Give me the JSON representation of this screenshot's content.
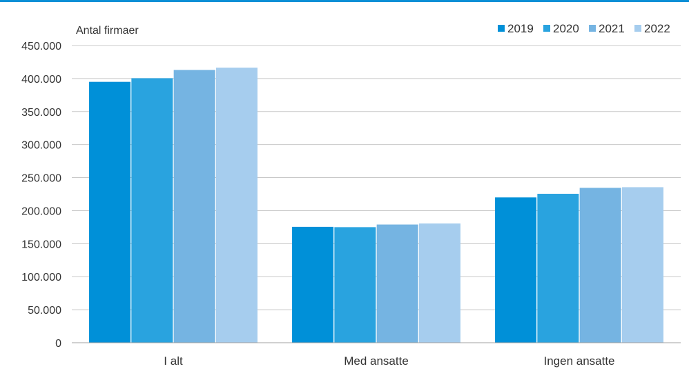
{
  "chart_data": {
    "type": "bar",
    "unit_label": "Antal firmaer",
    "categories": [
      "I alt",
      "Med ansatte",
      "Ingen ansatte"
    ],
    "series": [
      {
        "name": "2019",
        "color": "#0090d8",
        "values": [
          395000,
          175500,
          220000
        ]
      },
      {
        "name": "2020",
        "color": "#29a3df",
        "values": [
          400500,
          175000,
          225500
        ]
      },
      {
        "name": "2021",
        "color": "#75b4e2",
        "values": [
          413000,
          179000,
          234500
        ]
      },
      {
        "name": "2022",
        "color": "#a6cdee",
        "values": [
          416500,
          180500,
          235500
        ]
      }
    ],
    "ylim": [
      0,
      450000
    ],
    "y_ticks": [
      0,
      50000,
      100000,
      150000,
      200000,
      250000,
      300000,
      350000,
      400000,
      450000
    ],
    "y_tick_labels": [
      "0",
      "50.000",
      "100.000",
      "150.000",
      "200.000",
      "250.000",
      "300.000",
      "350.000",
      "400.000",
      "450.000"
    ],
    "grid": true,
    "legend_position": "top-right"
  }
}
